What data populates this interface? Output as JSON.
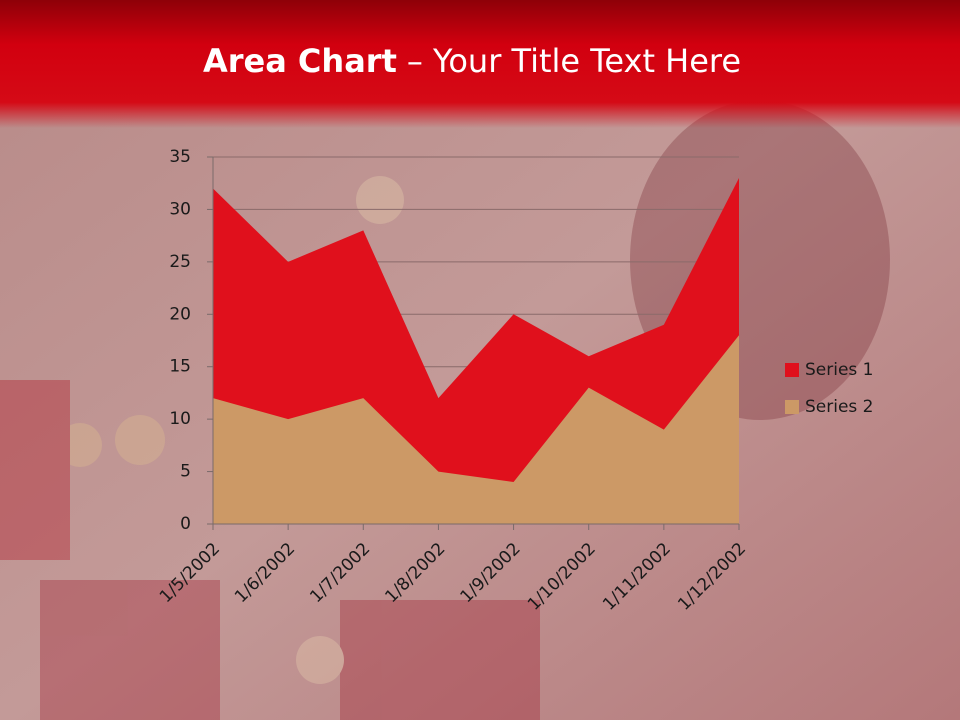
{
  "chart_data": {
    "type": "area",
    "title": "Area Chart",
    "subtitle": "– Your Title Text Here",
    "x": [
      "1/5/2002",
      "1/6/2002",
      "1/7/2002",
      "1/8/2002",
      "1/9/2002",
      "1/10/2002",
      "1/11/2002",
      "1/12/2002"
    ],
    "series": [
      {
        "name": "Series 1",
        "color": "#e0101c",
        "values": [
          32,
          25,
          28,
          12,
          20,
          16,
          19,
          33
        ]
      },
      {
        "name": "Series 2",
        "color": "#cc9966",
        "values": [
          12,
          10,
          12,
          5,
          4,
          13,
          9,
          18
        ]
      }
    ],
    "ylim": [
      0,
      35
    ],
    "yticks": [
      0,
      5,
      10,
      15,
      20,
      25,
      30,
      35
    ],
    "grid": true,
    "legend": "right"
  }
}
